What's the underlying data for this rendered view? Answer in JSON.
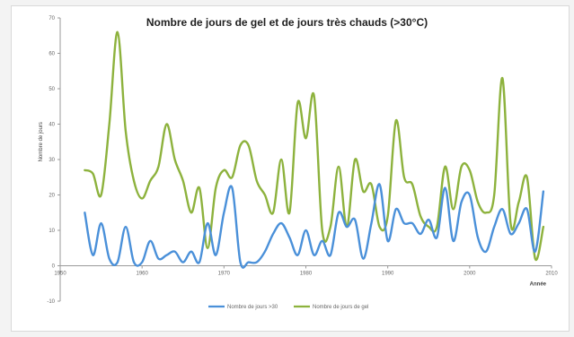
{
  "chart_data": {
    "type": "line",
    "title": "Nombre de jours de gel et de jours très chauds (>30°C)",
    "xlabel": "Année",
    "ylabel": "Nombre de jours",
    "xlim": [
      1950,
      2010
    ],
    "ylim": [
      -10,
      70
    ],
    "x_ticks": [
      1950,
      1960,
      1970,
      1980,
      1990,
      2000,
      2010
    ],
    "y_ticks": [
      -10,
      0,
      10,
      20,
      30,
      40,
      50,
      60,
      70
    ],
    "x_tick_labels": [
      "1950",
      "1960",
      "1970",
      "1980",
      "1990",
      "2000",
      "2010"
    ],
    "y_tick_labels": [
      "-10",
      "0",
      "10",
      "20",
      "30",
      "40",
      "50",
      "60",
      "70"
    ],
    "grid": false,
    "legend_position": "bottom",
    "series": [
      {
        "name": "Nombre de jours >30",
        "color": "#4a90d9",
        "points": [
          [
            1953,
            15
          ],
          [
            1954,
            3
          ],
          [
            1955,
            12
          ],
          [
            1956,
            2
          ],
          [
            1957,
            1
          ],
          [
            1958,
            11
          ],
          [
            1959,
            1
          ],
          [
            1960,
            1
          ],
          [
            1961,
            7
          ],
          [
            1962,
            2
          ],
          [
            1963,
            3
          ],
          [
            1964,
            4
          ],
          [
            1965,
            1
          ],
          [
            1966,
            4
          ],
          [
            1967,
            1
          ],
          [
            1968,
            12
          ],
          [
            1969,
            3
          ],
          [
            1970,
            15
          ],
          [
            1971,
            22
          ],
          [
            1972,
            1
          ],
          [
            1973,
            1
          ],
          [
            1974,
            1
          ],
          [
            1975,
            4
          ],
          [
            1976,
            9
          ],
          [
            1977,
            12
          ],
          [
            1978,
            8
          ],
          [
            1979,
            3
          ],
          [
            1980,
            10
          ],
          [
            1981,
            3
          ],
          [
            1982,
            7
          ],
          [
            1983,
            3
          ],
          [
            1984,
            15
          ],
          [
            1985,
            11
          ],
          [
            1986,
            13
          ],
          [
            1987,
            2
          ],
          [
            1988,
            12
          ],
          [
            1989,
            23
          ],
          [
            1990,
            7
          ],
          [
            1991,
            16
          ],
          [
            1992,
            12
          ],
          [
            1993,
            12
          ],
          [
            1994,
            9
          ],
          [
            1995,
            13
          ],
          [
            1996,
            8
          ],
          [
            1997,
            22
          ],
          [
            1998,
            7
          ],
          [
            1999,
            18
          ],
          [
            2000,
            20
          ],
          [
            2001,
            8
          ],
          [
            2002,
            4
          ],
          [
            2003,
            11
          ],
          [
            2004,
            16
          ],
          [
            2005,
            9
          ],
          [
            2006,
            12
          ],
          [
            2007,
            16
          ],
          [
            2008,
            4
          ],
          [
            2009,
            21
          ]
        ]
      },
      {
        "name": "Nombre de jours de gel",
        "color": "#8db23d",
        "points": [
          [
            1953,
            27
          ],
          [
            1954,
            26
          ],
          [
            1955,
            20
          ],
          [
            1956,
            40
          ],
          [
            1957,
            66
          ],
          [
            1958,
            38
          ],
          [
            1959,
            24
          ],
          [
            1960,
            19
          ],
          [
            1961,
            24
          ],
          [
            1962,
            28
          ],
          [
            1963,
            40
          ],
          [
            1964,
            30
          ],
          [
            1965,
            24
          ],
          [
            1966,
            15
          ],
          [
            1967,
            22
          ],
          [
            1968,
            5
          ],
          [
            1969,
            22
          ],
          [
            1970,
            27
          ],
          [
            1971,
            25
          ],
          [
            1972,
            34
          ],
          [
            1973,
            34
          ],
          [
            1974,
            24
          ],
          [
            1975,
            20
          ],
          [
            1976,
            15
          ],
          [
            1977,
            30
          ],
          [
            1978,
            15
          ],
          [
            1979,
            46
          ],
          [
            1980,
            36
          ],
          [
            1981,
            48
          ],
          [
            1982,
            10
          ],
          [
            1983,
            11
          ],
          [
            1984,
            28
          ],
          [
            1985,
            11
          ],
          [
            1986,
            30
          ],
          [
            1987,
            21
          ],
          [
            1988,
            23
          ],
          [
            1989,
            11
          ],
          [
            1990,
            14
          ],
          [
            1991,
            41
          ],
          [
            1992,
            25
          ],
          [
            1993,
            23
          ],
          [
            1994,
            14
          ],
          [
            1995,
            11
          ],
          [
            1996,
            11
          ],
          [
            1997,
            28
          ],
          [
            1998,
            16
          ],
          [
            1999,
            28
          ],
          [
            2000,
            27
          ],
          [
            2001,
            18
          ],
          [
            2002,
            15
          ],
          [
            2003,
            20
          ],
          [
            2004,
            53
          ],
          [
            2005,
            12
          ],
          [
            2006,
            18
          ],
          [
            2007,
            25
          ],
          [
            2008,
            2
          ],
          [
            2009,
            11
          ]
        ]
      }
    ]
  }
}
